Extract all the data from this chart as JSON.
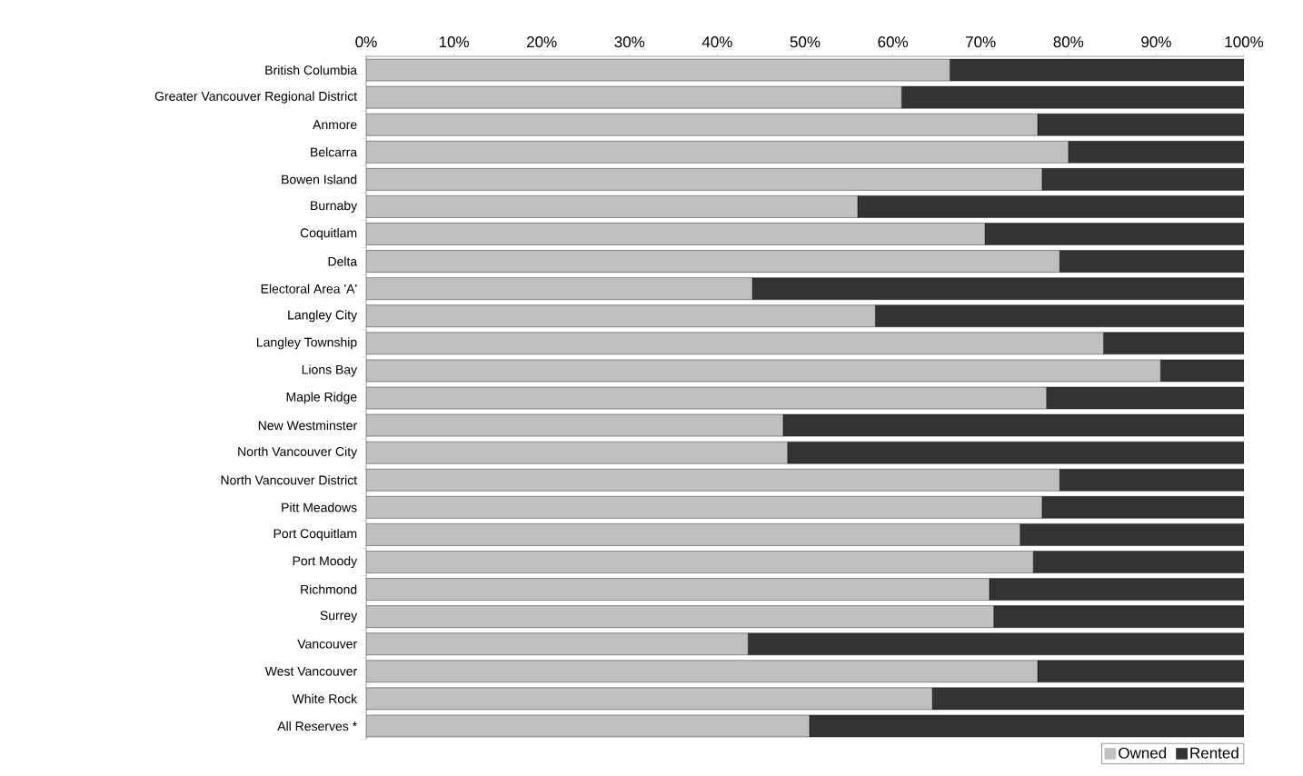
{
  "chart_data": {
    "type": "bar",
    "orientation": "horizontal",
    "stacked": true,
    "categories": [
      "British Columbia",
      "Greater Vancouver Regional District",
      "Anmore",
      "Belcarra",
      "Bowen Island",
      "Burnaby",
      "Coquitlam",
      "Delta",
      "Electoral Area  'A'",
      "Langley City",
      "Langley Township",
      "Lions Bay",
      "Maple Ridge",
      "New Westminster",
      "North Vancouver City",
      "North Vancouver District",
      "Pitt Meadows",
      "Port Coquitlam",
      "Port Moody",
      "Richmond",
      "Surrey",
      "Vancouver",
      "West Vancouver",
      "White Rock",
      "All Reserves *"
    ],
    "series": [
      {
        "name": "Owned",
        "color": "#c0c0c0",
        "values": [
          66.5,
          61,
          76.5,
          80,
          77,
          56,
          70.5,
          79,
          44,
          58,
          84,
          90.5,
          77.5,
          47.5,
          48,
          79,
          77,
          74.5,
          76,
          71,
          71.5,
          43.5,
          76.5,
          64.5,
          50.5
        ]
      },
      {
        "name": "Rented",
        "color": "#333333",
        "values": [
          33.5,
          39,
          23.5,
          20,
          23,
          44,
          29.5,
          21,
          56,
          42,
          16,
          9.5,
          22.5,
          52.5,
          52,
          21,
          23,
          25.5,
          24,
          29,
          28.5,
          56.5,
          23.5,
          35.5,
          49.5
        ]
      }
    ],
    "xlim": [
      0,
      100
    ],
    "xticks": [
      {
        "value": 0,
        "label": "0%"
      },
      {
        "value": 10,
        "label": "10%"
      },
      {
        "value": 20,
        "label": "20%"
      },
      {
        "value": 30,
        "label": "30%"
      },
      {
        "value": 40,
        "label": "40%"
      },
      {
        "value": 50,
        "label": "50%"
      },
      {
        "value": 60,
        "label": "60%"
      },
      {
        "value": 70,
        "label": "70%"
      },
      {
        "value": 80,
        "label": "80%"
      },
      {
        "value": 90,
        "label": "90%"
      },
      {
        "value": 100,
        "label": "100%"
      }
    ],
    "legend": "bottom right"
  }
}
